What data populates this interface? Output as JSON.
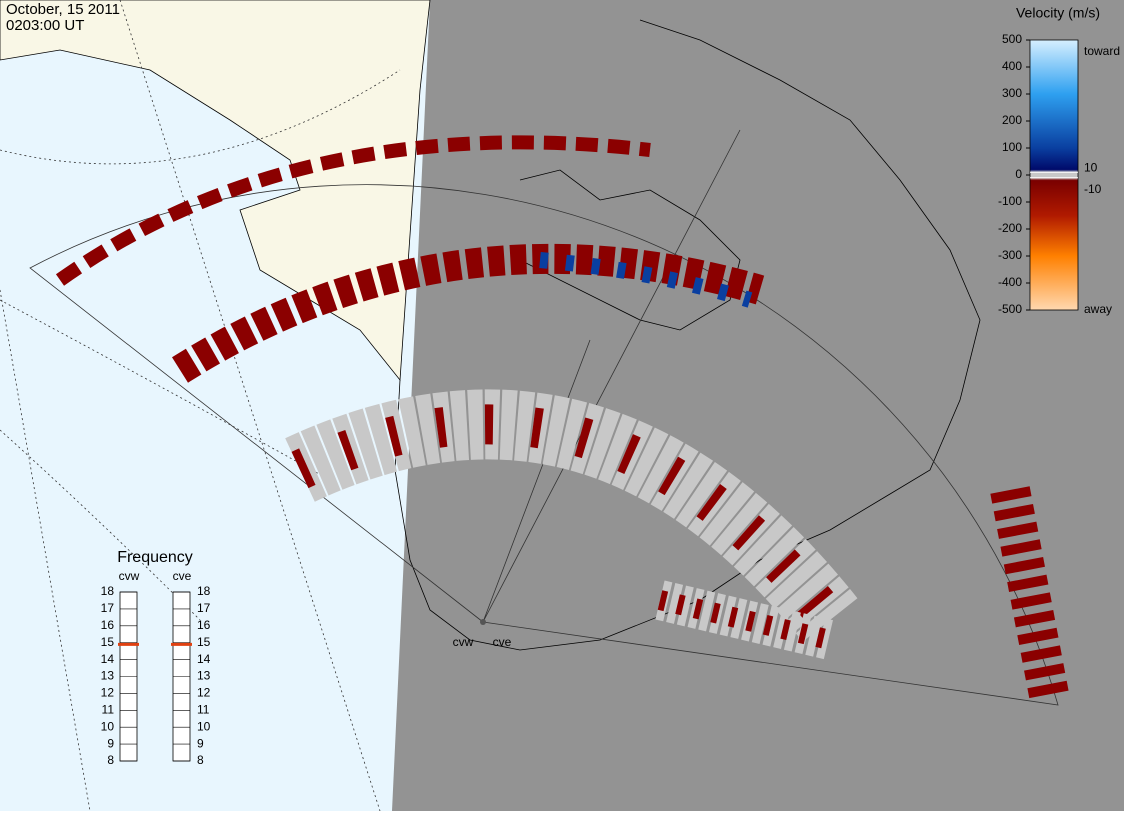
{
  "header": {
    "date": "October, 15 2011",
    "time": "0203:00 UT"
  },
  "colorbar": {
    "title": "Velocity (m/s)",
    "ticks": [
      500,
      400,
      300,
      200,
      100,
      0,
      -100,
      -200,
      -300,
      -400,
      -500
    ],
    "inner_ticks": [
      10,
      -10
    ],
    "toward": "toward",
    "away": "away"
  },
  "frequency": {
    "title": "Frequency",
    "ticks": [
      18,
      17,
      16,
      15,
      14,
      13,
      12,
      11,
      10,
      9,
      8
    ],
    "radars": [
      {
        "name": "cvw",
        "value": 14.9
      },
      {
        "name": "cve",
        "value": 14.9
      }
    ]
  },
  "stations": [
    "cvw",
    "cve"
  ]
}
